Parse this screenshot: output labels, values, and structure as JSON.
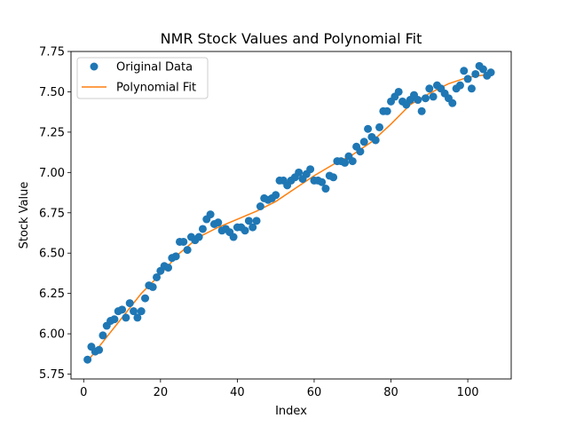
{
  "chart_data": {
    "type": "scatter",
    "title": "NMR Stock Values and Polynomial Fit",
    "xlabel": "Index",
    "ylabel": "Stock Value",
    "xlim": [
      -3.3,
      111.3
    ],
    "ylim": [
      5.72,
      7.75
    ],
    "x_ticks": [
      0,
      20,
      40,
      60,
      80,
      100
    ],
    "x_tick_labels": [
      "0",
      "20",
      "40",
      "60",
      "80",
      "100"
    ],
    "y_ticks": [
      5.75,
      6.0,
      6.25,
      6.5,
      6.75,
      7.0,
      7.25,
      7.5,
      7.75
    ],
    "y_tick_labels": [
      "5.75",
      "6.00",
      "6.25",
      "6.50",
      "6.75",
      "7.00",
      "7.25",
      "7.50",
      "7.75"
    ],
    "grid": false,
    "legend_position": "upper-left",
    "series": [
      {
        "name": "Original Data",
        "kind": "scatter",
        "color": "#1f77b4",
        "x": [
          1,
          2,
          3,
          4,
          5,
          6,
          7,
          8,
          9,
          10,
          11,
          12,
          13,
          14,
          15,
          16,
          17,
          18,
          19,
          20,
          21,
          22,
          23,
          24,
          25,
          26,
          27,
          28,
          29,
          30,
          31,
          32,
          33,
          34,
          35,
          36,
          37,
          38,
          39,
          40,
          41,
          42,
          43,
          44,
          45,
          46,
          47,
          48,
          49,
          50,
          51,
          52,
          53,
          54,
          55,
          56,
          57,
          58,
          59,
          60,
          61,
          62,
          63,
          64,
          65,
          66,
          67,
          68,
          69,
          70,
          71,
          72,
          73,
          74,
          75,
          76,
          77,
          78,
          79,
          80,
          81,
          82,
          83,
          84,
          85,
          86,
          87,
          88,
          89,
          90,
          91,
          92,
          93,
          94,
          95,
          96,
          97,
          98,
          99,
          100,
          101,
          102,
          103,
          104,
          105,
          106
        ],
        "y": [
          5.84,
          5.92,
          5.89,
          5.9,
          5.99,
          6.05,
          6.08,
          6.09,
          6.14,
          6.15,
          6.1,
          6.19,
          6.14,
          6.1,
          6.14,
          6.22,
          6.3,
          6.29,
          6.35,
          6.39,
          6.42,
          6.41,
          6.47,
          6.48,
          6.57,
          6.57,
          6.52,
          6.6,
          6.58,
          6.6,
          6.65,
          6.71,
          6.74,
          6.68,
          6.69,
          6.64,
          6.65,
          6.63,
          6.6,
          6.66,
          6.66,
          6.64,
          6.7,
          6.66,
          6.7,
          6.79,
          6.84,
          6.83,
          6.84,
          6.86,
          6.95,
          6.95,
          6.92,
          6.95,
          6.97,
          7.0,
          6.96,
          6.99,
          7.02,
          6.95,
          6.95,
          6.94,
          6.9,
          6.98,
          6.97,
          7.07,
          7.07,
          7.06,
          7.1,
          7.07,
          7.16,
          7.13,
          7.19,
          7.27,
          7.22,
          7.2,
          7.28,
          7.38,
          7.38,
          7.44,
          7.47,
          7.5,
          7.44,
          7.42,
          7.45,
          7.48,
          7.45,
          7.38,
          7.46,
          7.52,
          7.47,
          7.54,
          7.52,
          7.49,
          7.46,
          7.43,
          7.52,
          7.54,
          7.63,
          7.58,
          7.52,
          7.61,
          7.66,
          7.64,
          7.6,
          7.62
        ]
      },
      {
        "name": "Polynomial Fit",
        "kind": "line",
        "color": "#ff7f0e",
        "x": [
          1,
          5,
          10,
          15,
          20,
          25,
          30,
          35,
          40,
          45,
          50,
          55,
          60,
          65,
          70,
          75,
          80,
          85,
          90,
          95,
          100,
          103,
          106
        ],
        "y": [
          5.83,
          5.95,
          6.1,
          6.25,
          6.37,
          6.5,
          6.6,
          6.66,
          6.71,
          6.76,
          6.82,
          6.9,
          6.98,
          7.05,
          7.11,
          7.19,
          7.3,
          7.42,
          7.49,
          7.55,
          7.59,
          7.6,
          7.61
        ]
      }
    ]
  }
}
